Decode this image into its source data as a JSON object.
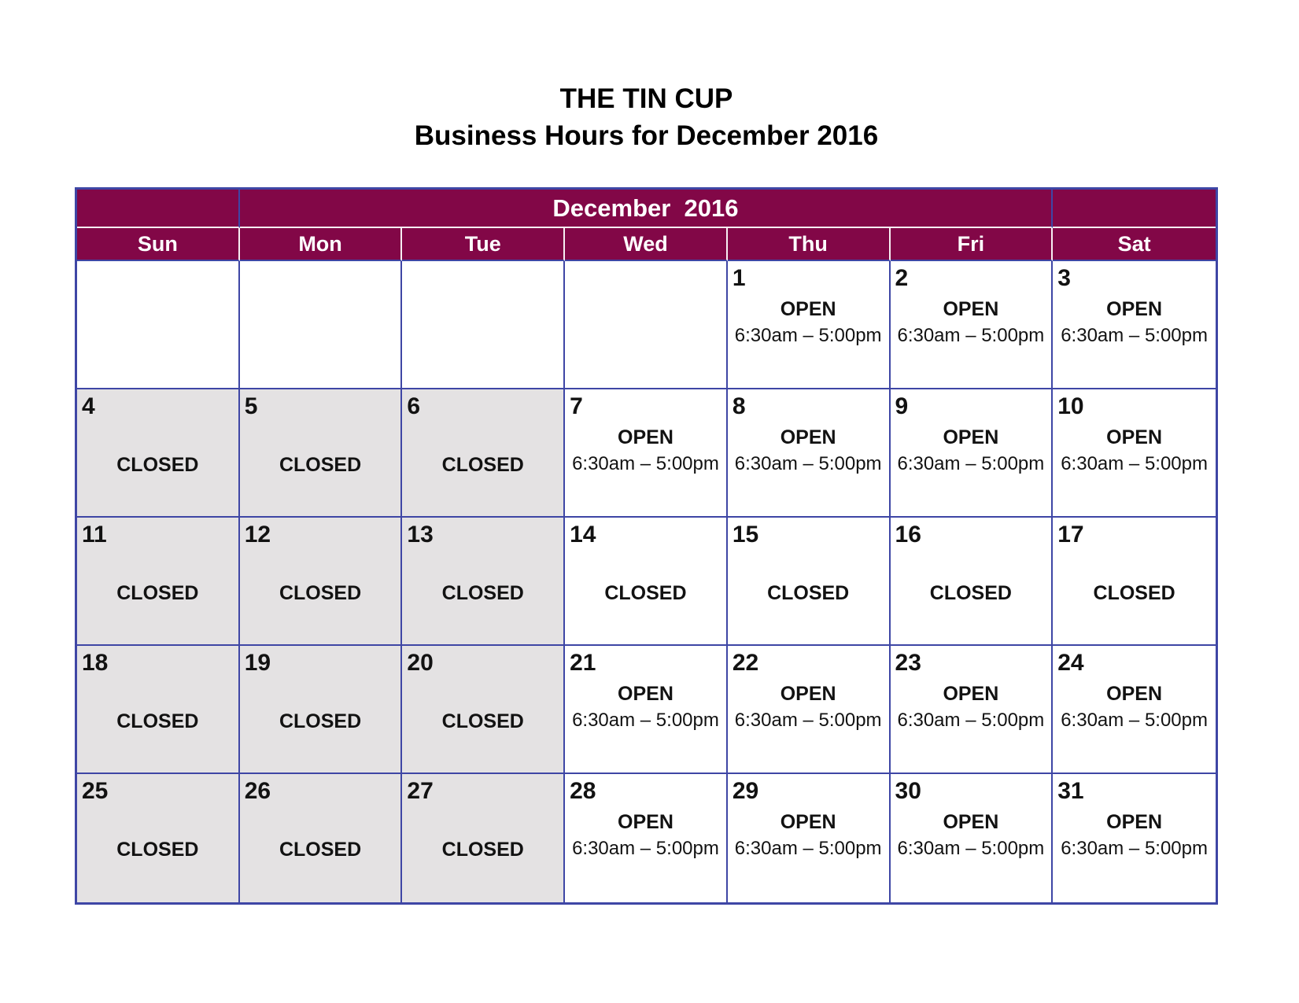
{
  "title": {
    "line1": "THE TIN CUP",
    "line2": "Business Hours for December 2016"
  },
  "calendar": {
    "month_header": "December  2016",
    "day_headers": [
      "Sun",
      "Mon",
      "Tue",
      "Wed",
      "Thu",
      "Fri",
      "Sat"
    ],
    "open_label": "OPEN",
    "closed_label": "CLOSED",
    "hours": "6:30am – 5:00pm",
    "weeks": [
      [
        {
          "date": "",
          "status": "blank"
        },
        {
          "date": "",
          "status": "blank"
        },
        {
          "date": "",
          "status": "blank"
        },
        {
          "date": "",
          "status": "blank"
        },
        {
          "date": "1",
          "status": "open"
        },
        {
          "date": "2",
          "status": "open"
        },
        {
          "date": "3",
          "status": "open"
        }
      ],
      [
        {
          "date": "4",
          "status": "closed",
          "shaded": true
        },
        {
          "date": "5",
          "status": "closed",
          "shaded": true
        },
        {
          "date": "6",
          "status": "closed",
          "shaded": true
        },
        {
          "date": "7",
          "status": "open"
        },
        {
          "date": "8",
          "status": "open"
        },
        {
          "date": "9",
          "status": "open"
        },
        {
          "date": "10",
          "status": "open"
        }
      ],
      [
        {
          "date": "11",
          "status": "closed",
          "shaded": true
        },
        {
          "date": "12",
          "status": "closed",
          "shaded": true
        },
        {
          "date": "13",
          "status": "closed",
          "shaded": true
        },
        {
          "date": "14",
          "status": "closed"
        },
        {
          "date": "15",
          "status": "closed"
        },
        {
          "date": "16",
          "status": "closed"
        },
        {
          "date": "17",
          "status": "closed"
        }
      ],
      [
        {
          "date": "18",
          "status": "closed",
          "shaded": true
        },
        {
          "date": "19",
          "status": "closed",
          "shaded": true
        },
        {
          "date": "20",
          "status": "closed",
          "shaded": true
        },
        {
          "date": "21",
          "status": "open"
        },
        {
          "date": "22",
          "status": "open"
        },
        {
          "date": "23",
          "status": "open"
        },
        {
          "date": "24",
          "status": "open"
        }
      ],
      [
        {
          "date": "25",
          "status": "closed",
          "shaded": true
        },
        {
          "date": "26",
          "status": "closed",
          "shaded": true
        },
        {
          "date": "27",
          "status": "closed",
          "shaded": true
        },
        {
          "date": "28",
          "status": "open"
        },
        {
          "date": "29",
          "status": "open"
        },
        {
          "date": "30",
          "status": "open"
        },
        {
          "date": "31",
          "status": "open"
        }
      ]
    ]
  },
  "colors": {
    "header_maroon": "#820747",
    "border_blue": "#3E46A5",
    "closed_gray": "#E4E2E3"
  }
}
